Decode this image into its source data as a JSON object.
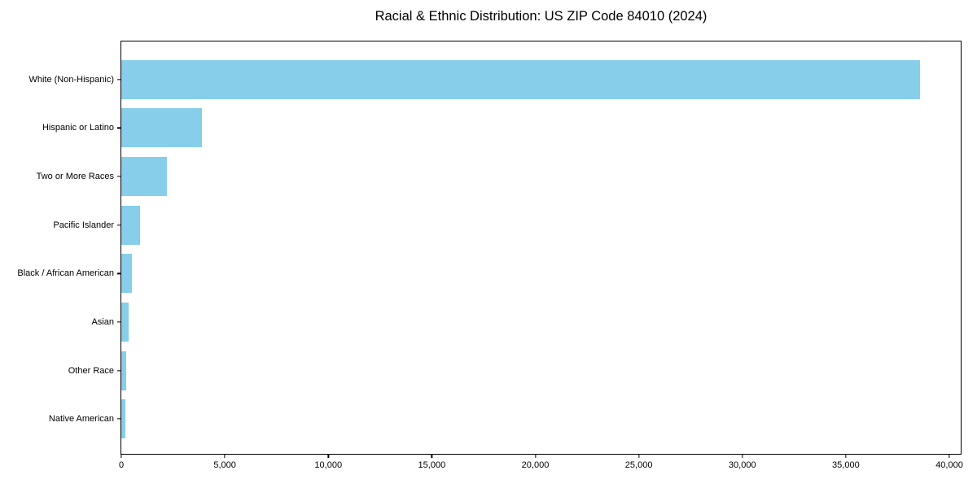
{
  "title": "Racial & Ethnic Distribution: US ZIP Code 84010 (2024)",
  "chart_data": {
    "type": "bar",
    "orientation": "horizontal",
    "title": "Racial & Ethnic Distribution: US ZIP Code 84010 (2024)",
    "xlabel": "",
    "ylabel": "",
    "categories": [
      "White (Non-Hispanic)",
      "Hispanic or Latino",
      "Two or More Races",
      "Pacific Islander",
      "Black / African American",
      "Asian",
      "Other Race",
      "Native American"
    ],
    "values": [
      38600,
      3900,
      2200,
      920,
      530,
      350,
      240,
      180
    ],
    "bar_color": "#87CEEB",
    "background_color": "#ffffff",
    "spine_color": "#000000",
    "grid": false,
    "legend": false,
    "xlim": [
      0,
      40550
    ],
    "x_ticks": [
      0,
      5000,
      10000,
      15000,
      20000,
      25000,
      30000,
      35000,
      40000
    ],
    "x_tick_labels": [
      "0",
      "5,000",
      "10,000",
      "15,000",
      "20,000",
      "25,000",
      "30,000",
      "35,000",
      "40,000"
    ]
  }
}
